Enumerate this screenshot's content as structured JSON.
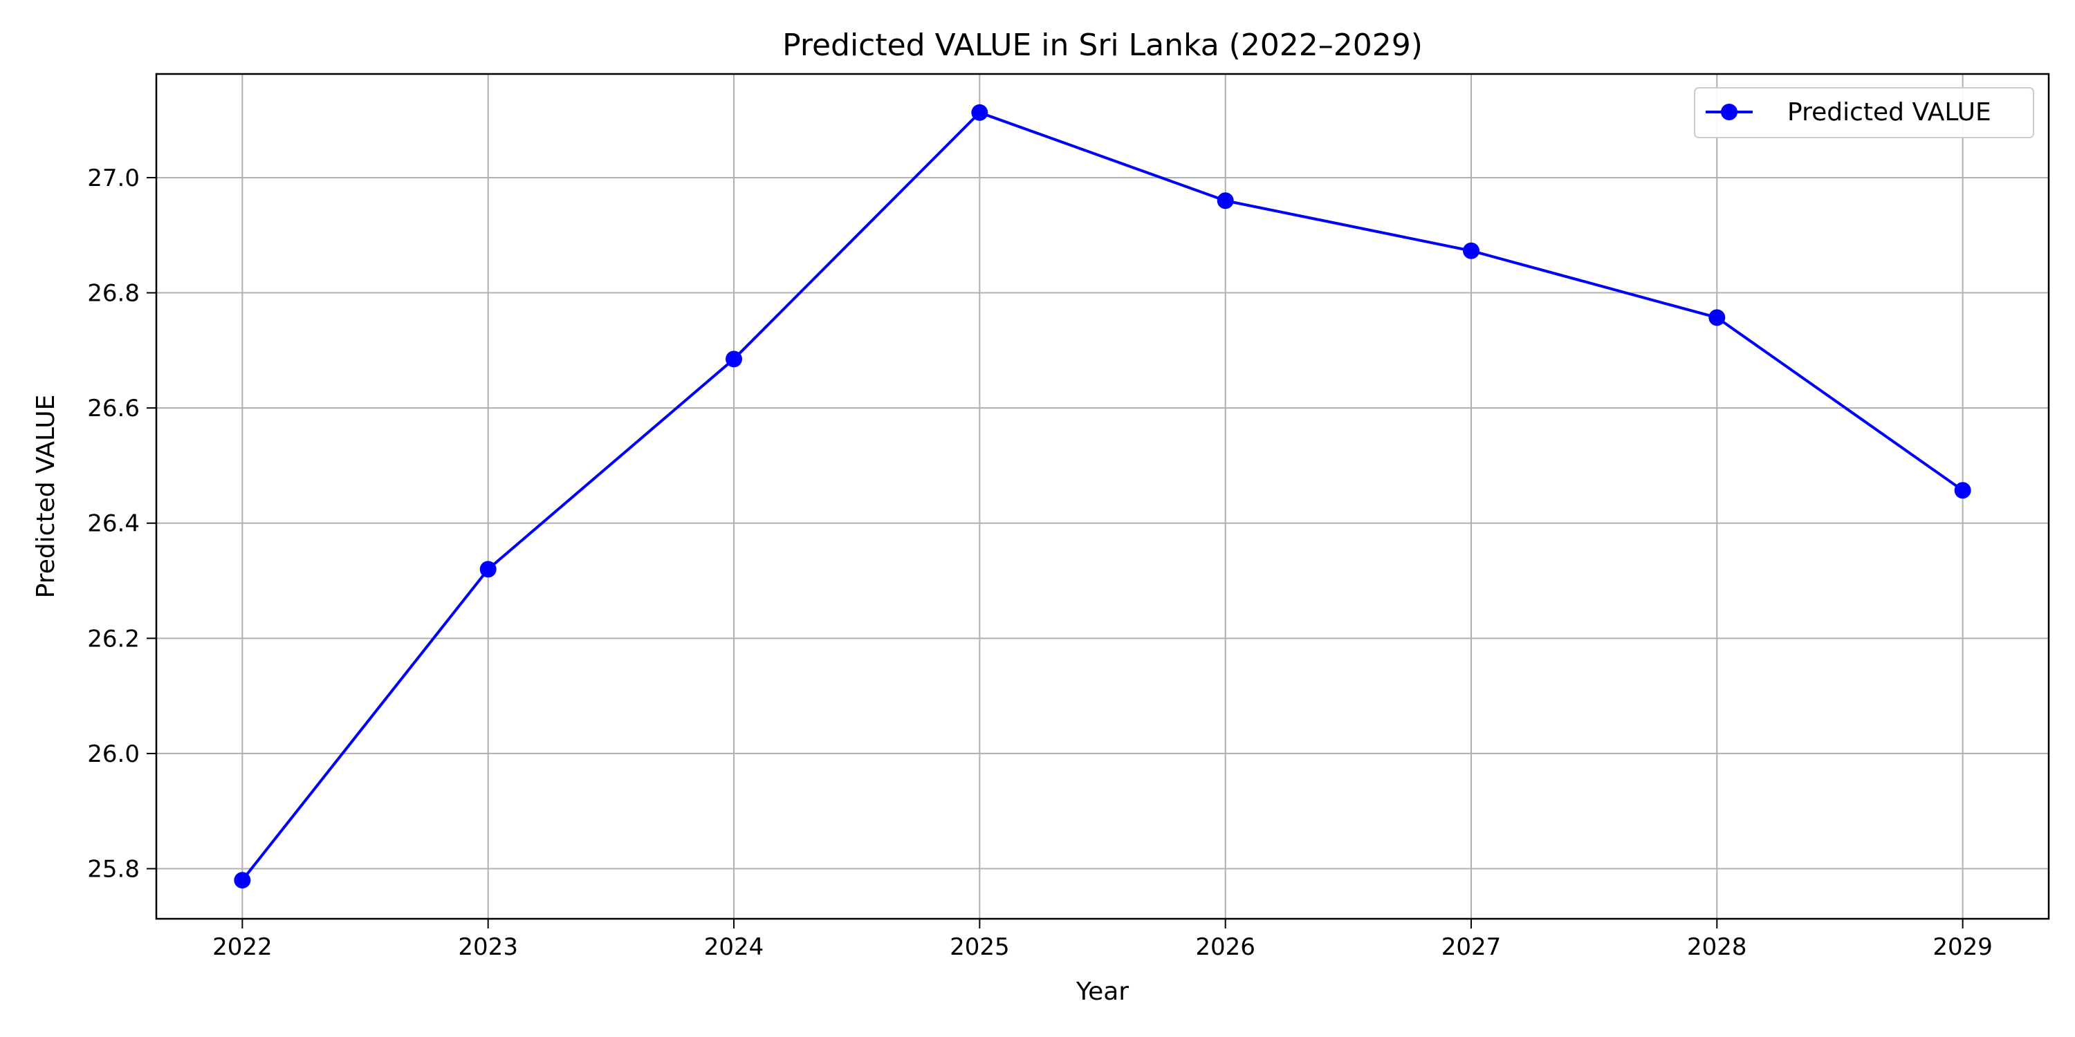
{
  "chart_data": {
    "type": "line",
    "title": "Predicted VALUE in Sri Lanka (2022–2029)",
    "xlabel": "Year",
    "ylabel": "Predicted VALUE",
    "x": [
      2022,
      2023,
      2024,
      2025,
      2026,
      2027,
      2028,
      2029
    ],
    "series": [
      {
        "name": "Predicted VALUE",
        "values": [
          25.78,
          26.32,
          26.685,
          27.113,
          26.96,
          26.873,
          26.757,
          26.457
        ],
        "color": "#0000ff",
        "marker": "circle"
      }
    ],
    "xticks": [
      "2022",
      "2023",
      "2024",
      "2025",
      "2026",
      "2027",
      "2028",
      "2029"
    ],
    "yticks": [
      "25.8",
      "26.0",
      "26.2",
      "26.4",
      "26.6",
      "26.8",
      "27.0"
    ],
    "xlim": [
      2021.65,
      2029.35
    ],
    "ylim": [
      25.713,
      27.18
    ],
    "grid": true,
    "legend_position": "top-right"
  }
}
